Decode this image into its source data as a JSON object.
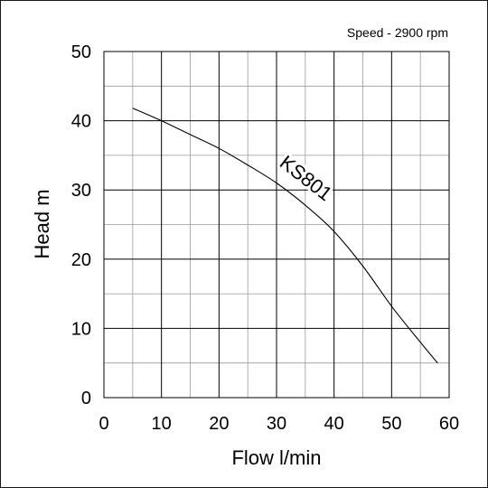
{
  "chart_data": {
    "type": "line",
    "title": "",
    "annotation": "Speed - 2900 rpm",
    "xlabel": "Flow l/min",
    "ylabel": "Head m",
    "xlim": [
      0,
      60
    ],
    "ylim": [
      0,
      50
    ],
    "xticks": [
      0,
      10,
      20,
      30,
      40,
      50,
      60
    ],
    "yticks": [
      0,
      10,
      20,
      30,
      40,
      50
    ],
    "grid": true,
    "series": [
      {
        "name": "KS801",
        "x": [
          5,
          10,
          15,
          20,
          25,
          30,
          35,
          40,
          45,
          50,
          55,
          58
        ],
        "y": [
          41.8,
          40,
          38,
          36,
          33.6,
          31,
          27.8,
          24,
          19,
          13.2,
          8,
          5
        ]
      }
    ]
  }
}
